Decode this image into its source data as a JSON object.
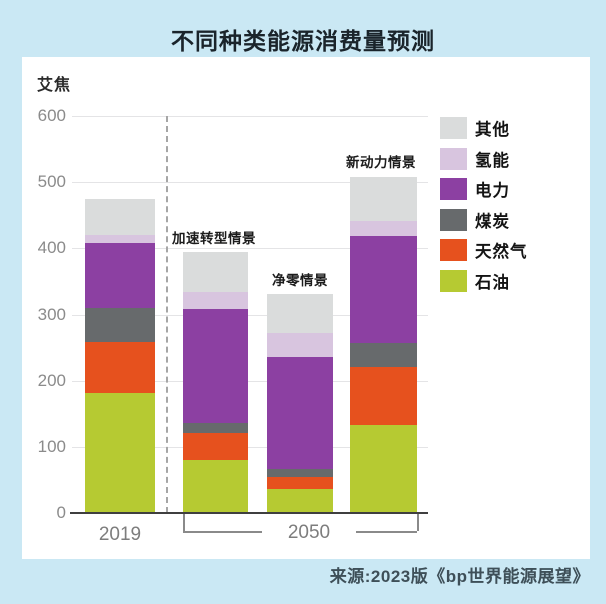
{
  "title": "不同种类能源消费量预测",
  "source": "来源:2023版《bp世界能源展望》",
  "colors": {
    "background": "#cae8f4",
    "panel": "#ffffff",
    "title_text": "#1a242b",
    "axis_text": "#8b8b8b",
    "axis_line": "#3f3f3f",
    "gridline": "#e4e4e6",
    "dashed_separator": "#a6a6a6",
    "source_text": "#3e4f58"
  },
  "chart_data": {
    "type": "bar",
    "stacked": true,
    "title": "不同种类能源消费量预测",
    "ylabel": "艾焦",
    "xlabel": "",
    "ylim": [
      0,
      600
    ],
    "yticks": [
      0,
      100,
      200,
      300,
      400,
      500,
      600
    ],
    "grid": true,
    "legend_position": "right",
    "categories": [
      "2019",
      "加速转型情景",
      "净零情景",
      "新动力情景"
    ],
    "x_axis": {
      "year_label": "2019",
      "group_label": "2050",
      "group_spans_categories": [
        "加速转型情景",
        "净零情景",
        "新动力情景"
      ]
    },
    "scenario_labels": [
      "加速转型情景",
      "净零情景",
      "新动力情景"
    ],
    "series": [
      {
        "id": "oil",
        "name": "石油",
        "color": "#b6ca32",
        "values": [
          182,
          80,
          36,
          133
        ]
      },
      {
        "id": "natural-gas",
        "name": "天然气",
        "color": "#e6511e",
        "values": [
          76,
          41,
          18,
          88
        ]
      },
      {
        "id": "coal",
        "name": "煤炭",
        "color": "#676a6c",
        "values": [
          52,
          15,
          12,
          36
        ]
      },
      {
        "id": "electricity",
        "name": "电力",
        "color": "#8c40a2",
        "values": [
          98,
          172,
          170,
          162
        ]
      },
      {
        "id": "hydrogen",
        "name": "氢能",
        "color": "#d8c5df",
        "values": [
          12,
          26,
          36,
          22
        ]
      },
      {
        "id": "other",
        "name": "其他",
        "color": "#dadcdc",
        "values": [
          55,
          61,
          59,
          67
        ]
      }
    ],
    "totals": [
      475,
      395,
      331,
      508
    ]
  }
}
